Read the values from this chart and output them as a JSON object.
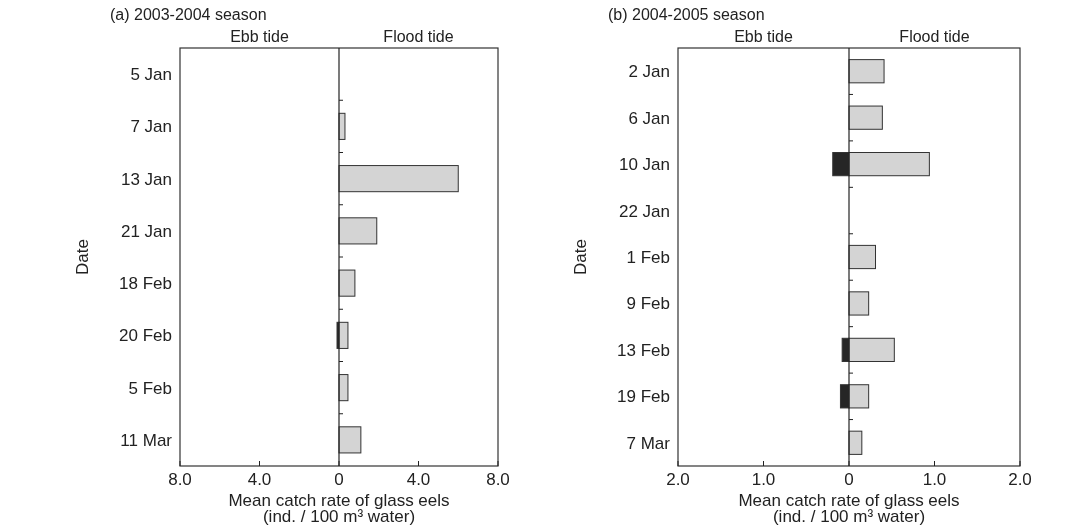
{
  "chart_data": [
    {
      "type": "bar",
      "orientation": "horizontal",
      "stacked": true,
      "title": "(a) 2003-2004 season",
      "annotations": [
        "Ebb tide",
        "Flood tide"
      ],
      "xlabel": "Mean catch rate of glass eels\n(ind. / 100 m³ water)",
      "ylabel": "Date",
      "categories": [
        "5 Jan",
        "7 Jan",
        "13 Jan",
        "21 Jan",
        "18 Feb",
        "20 Feb",
        "5 Feb",
        "11 Mar"
      ],
      "series": [
        {
          "color": "#262626",
          "values": [
            0,
            0,
            0,
            0,
            0,
            -0.1,
            0,
            0
          ]
        },
        {
          "color": "#d4d4d4",
          "values": [
            0,
            0.3,
            6.0,
            1.9,
            0.8,
            0.45,
            0.45,
            1.1
          ]
        }
      ],
      "xlim": [
        -8,
        8
      ],
      "xticks": [
        {
          "value": -8,
          "label": "8.0"
        },
        {
          "value": -4,
          "label": "4.0"
        },
        0,
        {
          "value": 4,
          "label": "4.0"
        },
        {
          "value": 8,
          "label": "8.0"
        }
      ]
    },
    {
      "type": "bar",
      "orientation": "horizontal",
      "stacked": true,
      "title": "(b) 2004-2005 season",
      "annotations": [
        "Ebb tide",
        "Flood tide"
      ],
      "xlabel": "Mean catch rate of glass eels\n(ind. / 100 m³ water)",
      "ylabel": "Date",
      "categories": [
        "2 Jan",
        "6 Jan",
        "10 Jan",
        "22 Jan",
        "1 Feb",
        "9 Feb",
        "13 Feb",
        "19 Feb",
        "7 Mar"
      ],
      "series": [
        {
          "color": "#262626",
          "values": [
            0,
            0,
            -0.19,
            0,
            0,
            0,
            -0.08,
            -0.1,
            0
          ]
        },
        {
          "color": "#d4d4d4",
          "values": [
            0.41,
            0.39,
            0.94,
            0,
            0.31,
            0.23,
            0.53,
            0.23,
            0.15
          ]
        }
      ],
      "xlim": [
        -2,
        2
      ],
      "xticks": [
        {
          "value": -2,
          "label": "2.0"
        },
        {
          "value": -1,
          "label": "1.0"
        },
        0,
        {
          "value": 1,
          "label": "1.0"
        },
        {
          "value": 2,
          "label": "2.0"
        }
      ]
    }
  ]
}
